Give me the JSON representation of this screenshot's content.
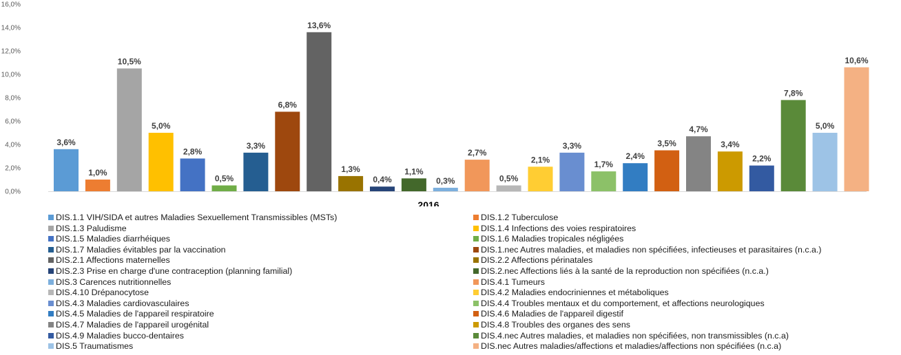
{
  "chart_data": {
    "type": "bar",
    "categories": [
      "2016"
    ],
    "ylim": [
      0,
      16
    ],
    "y_ticks": [
      "0,0%",
      "2,0%",
      "4,0%",
      "6,0%",
      "8,0%",
      "10,0%",
      "12,0%",
      "14,0%",
      "16,0%"
    ],
    "legend_position": "bottom",
    "grid": false,
    "series": [
      {
        "name": "DIS.1.1 VIH/SIDA et autres Maladies Sexuellement Transmissibles (MSTs)",
        "value": 3.6,
        "label": "3,6%",
        "color": "#5b9bd5"
      },
      {
        "name": "DIS.1.2 Tuberculose",
        "value": 1.0,
        "label": "1,0%",
        "color": "#ed7d31"
      },
      {
        "name": "DIS.1.3 Paludisme",
        "value": 10.5,
        "label": "10,5%",
        "color": "#a5a5a5"
      },
      {
        "name": "DIS.1.4 Infections des voies respiratoires",
        "value": 5.0,
        "label": "5,0%",
        "color": "#ffc000"
      },
      {
        "name": "DIS.1.5 Maladies diarrhéiques",
        "value": 2.8,
        "label": "2,8%",
        "color": "#4472c4"
      },
      {
        "name": "DIS.1.6 Maladies tropicales négligées",
        "value": 0.5,
        "label": "0,5%",
        "color": "#70ad47"
      },
      {
        "name": "DIS.1.7 Maladies évitables par la vaccination",
        "value": 3.3,
        "label": "3,3%",
        "color": "#255e91"
      },
      {
        "name": "DIS.1.nec Autres maladies, et maladies non spécifiées, infectieuses et parasitaires (n.c.a.)",
        "value": 6.8,
        "label": "6,8%",
        "color": "#9e480e"
      },
      {
        "name": "DIS.2.1 Affections maternelles",
        "value": 13.6,
        "label": "13,6%",
        "color": "#636363"
      },
      {
        "name": "DIS.2.2 Affections périnatales",
        "value": 1.3,
        "label": "1,3%",
        "color": "#997300"
      },
      {
        "name": "DIS.2.3 Prise en charge d'une contraception (planning familial)",
        "value": 0.4,
        "label": "0,4%",
        "color": "#264478"
      },
      {
        "name": "DIS.2.nec Affections liés à la santé de la reproduction non spécifiées (n.c.a.)",
        "value": 1.1,
        "label": "1,1%",
        "color": "#43682b"
      },
      {
        "name": "DIS.3 Carences nutritionnelles",
        "value": 0.3,
        "label": "0,3%",
        "color": "#7cafdd"
      },
      {
        "name": "DIS.4.1 Tumeurs",
        "value": 2.7,
        "label": "2,7%",
        "color": "#f1975a"
      },
      {
        "name": "DIS.4.10 Drépanocytose",
        "value": 0.5,
        "label": "0,5%",
        "color": "#b7b7b7"
      },
      {
        "name": "DIS.4.2 Maladies endocriniennes et métaboliques",
        "value": 2.1,
        "label": "2,1%",
        "color": "#ffcd33"
      },
      {
        "name": "DIS.4.3 Maladies cardiovasculaires",
        "value": 3.3,
        "label": "3,3%",
        "color": "#698ed0"
      },
      {
        "name": "DIS.4.4 Troubles mentaux et du comportement, et affections neurologiques",
        "value": 1.7,
        "label": "1,7%",
        "color": "#8cc168"
      },
      {
        "name": "DIS.4.5 Maladies de l'appareil respiratoire",
        "value": 2.4,
        "label": "2,4%",
        "color": "#327dc2"
      },
      {
        "name": "DIS.4.6 Maladies de l'appareil digestif",
        "value": 3.5,
        "label": "3,5%",
        "color": "#d26012"
      },
      {
        "name": "DIS.4.7 Maladies de l'appareil urogénital",
        "value": 4.7,
        "label": "4,7%",
        "color": "#848484"
      },
      {
        "name": "DIS.4.8 Troubles des organes des sens",
        "value": 3.4,
        "label": "3,4%",
        "color": "#cc9a00"
      },
      {
        "name": "DIS.4.9 Maladies bucco-dentaires",
        "value": 2.2,
        "label": "2,2%",
        "color": "#335aa1"
      },
      {
        "name": "DIS.4.nec Autres maladies, et maladies non spécifiées, non transmissibles (n.c.a)",
        "value": 7.8,
        "label": "7,8%",
        "color": "#5a8a39"
      },
      {
        "name": "DIS.5 Traumatismes",
        "value": 5.0,
        "label": "5,0%",
        "color": "#9dc3e6"
      },
      {
        "name": "DIS.nec Autres maladies/affections et maladies/affections non spécifiées (n.c.a)",
        "value": 10.6,
        "label": "10,6%",
        "color": "#f4b183"
      }
    ]
  }
}
